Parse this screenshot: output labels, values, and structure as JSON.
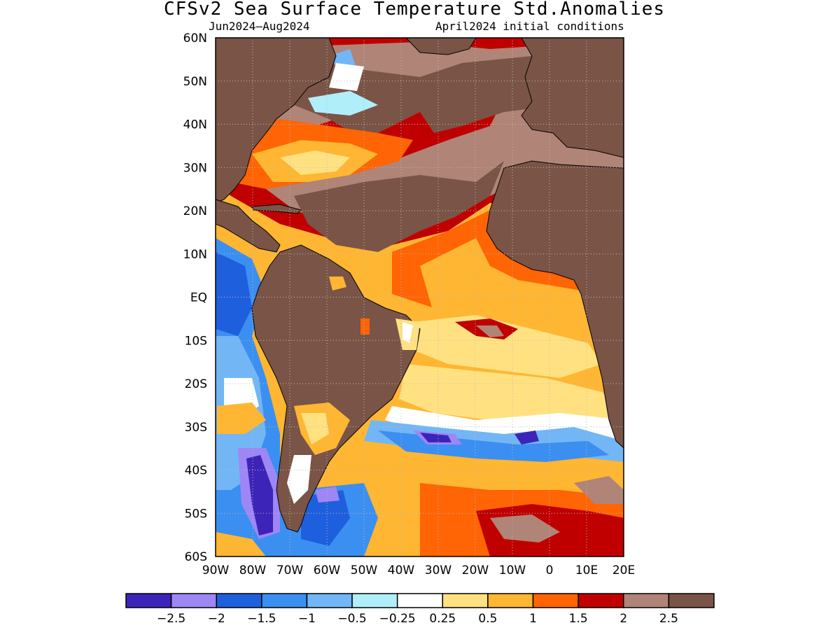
{
  "title": "CFSv2 Sea Surface Temperature Std.Anomalies",
  "subtitle_left": "Jun2024–Aug2024",
  "subtitle_right": "April2024 initial conditions",
  "map": {
    "region": "Atlantic Ocean and South America",
    "lon_range": [
      -90,
      20
    ],
    "lat_range": [
      -60,
      60
    ],
    "land_fill_color": "#7a5446",
    "coastline_color": "#000000",
    "grid_lines": "dotted",
    "lat_ticks": [
      {
        "value": 60,
        "label": "60N"
      },
      {
        "value": 50,
        "label": "50N"
      },
      {
        "value": 40,
        "label": "40N"
      },
      {
        "value": 30,
        "label": "30N"
      },
      {
        "value": 20,
        "label": "20N"
      },
      {
        "value": 10,
        "label": "10N"
      },
      {
        "value": 0,
        "label": "EQ"
      },
      {
        "value": -10,
        "label": "10S"
      },
      {
        "value": -20,
        "label": "20S"
      },
      {
        "value": -30,
        "label": "30S"
      },
      {
        "value": -40,
        "label": "40S"
      },
      {
        "value": -50,
        "label": "50S"
      },
      {
        "value": -60,
        "label": "60S"
      }
    ],
    "lon_ticks": [
      {
        "value": -90,
        "label": "90W"
      },
      {
        "value": -80,
        "label": "80W"
      },
      {
        "value": -70,
        "label": "70W"
      },
      {
        "value": -60,
        "label": "60W"
      },
      {
        "value": -50,
        "label": "50W"
      },
      {
        "value": -40,
        "label": "40W"
      },
      {
        "value": -30,
        "label": "30W"
      },
      {
        "value": -20,
        "label": "20W"
      },
      {
        "value": -10,
        "label": "10W"
      },
      {
        "value": 0,
        "label": "0"
      },
      {
        "value": 10,
        "label": "10E"
      },
      {
        "value": 20,
        "label": "20E"
      }
    ]
  },
  "legend": {
    "colors": [
      "#3d24b8",
      "#9e86f5",
      "#1e5fde",
      "#3b8ff0",
      "#73b6f5",
      "#b0eefa",
      "#ffffff",
      "#ffe182",
      "#ffb632",
      "#ff6405",
      "#c00000",
      "#b08476",
      "#7a5446"
    ],
    "labels": [
      "−2.5",
      "−2",
      "−1.5",
      "−1",
      "−0.5",
      "−0.25",
      "0.25",
      "0.5",
      "1",
      "1.5",
      "2",
      "2.5"
    ]
  }
}
